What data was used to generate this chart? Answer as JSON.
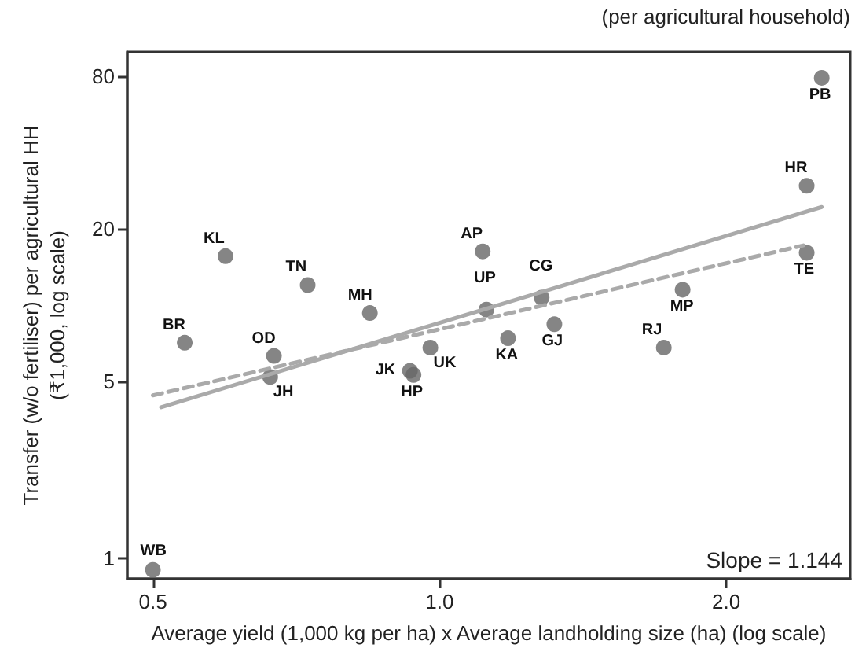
{
  "chart_data": {
    "type": "scatter",
    "xlabel": "Average yield (1,000 kg per ha) x Average landholding size (ha) (log scale)",
    "ylabel": "Transfer (w/o fertiliser) per agricultural HH\n(₹1,000, log scale)",
    "log": "xy",
    "grid": false,
    "xlim": [
      0.47,
      2.7
    ],
    "xticks": [
      0.5,
      {
        "value": 1,
        "label": "1.0"
      },
      {
        "value": 2,
        "label": "2.0"
      }
    ],
    "ylim": [
      0.83,
      100
    ],
    "yticks": [
      1,
      5,
      20,
      80
    ],
    "x": [
      0.5,
      0.54,
      0.596,
      0.727,
      0.67,
      0.664,
      0.845,
      0.978,
      0.931,
      0.939,
      1.11,
      1.12,
      1.18,
      1.28,
      1.32,
      1.72,
      1.8,
      2.43,
      2.43,
      2.52
    ],
    "series": [
      {
        "marker": "circle",
        "color": "#666666",
        "values": [
          0.9,
          7.1,
          15.6,
          12.0,
          6.3,
          5.2,
          9.3,
          6.8,
          5.5,
          5.3,
          16.3,
          9.6,
          7.4,
          10.7,
          8.4,
          6.8,
          11.5,
          16.1,
          29.6,
          79
        ]
      },
      {
        "type": "line",
        "color": "#aaaaaa",
        "line_style": "solid",
        "x": [
          0.51,
          2.52
        ],
        "values": [
          3.95,
          24.4
        ]
      },
      {
        "type": "line",
        "color": "#aaaaaa",
        "line_style": "dashed",
        "x": [
          0.5,
          2.41
        ],
        "values": [
          4.4,
          17.2
        ]
      }
    ],
    "annotations": [
      "(per agricultural household)",
      "Slope = 1.144",
      {
        "text": "WB",
        "x": 0.5,
        "y": 0.9
      },
      {
        "text": "BR",
        "x": 0.54,
        "y": 7.1
      },
      {
        "text": "KL",
        "x": 0.596,
        "y": 15.6
      },
      {
        "text": "TN",
        "x": 0.727,
        "y": 12.0
      },
      {
        "text": "OD",
        "x": 0.67,
        "y": 6.3
      },
      {
        "text": "JH",
        "x": 0.664,
        "y": 5.2
      },
      {
        "text": "MH",
        "x": 0.845,
        "y": 9.3
      },
      {
        "text": "UK",
        "x": 0.978,
        "y": 6.8
      },
      {
        "text": "JK",
        "x": 0.931,
        "y": 5.5
      },
      {
        "text": "HP",
        "x": 0.939,
        "y": 5.3
      },
      {
        "text": "AP",
        "x": 1.11,
        "y": 16.3
      },
      {
        "text": "UP",
        "x": 1.12,
        "y": 9.6
      },
      {
        "text": "KA",
        "x": 1.18,
        "y": 7.4
      },
      {
        "text": "CG",
        "x": 1.28,
        "y": 10.7
      },
      {
        "text": "GJ",
        "x": 1.32,
        "y": 8.4
      },
      {
        "text": "RJ",
        "x": 1.72,
        "y": 6.8
      },
      {
        "text": "MP",
        "x": 1.8,
        "y": 11.5
      },
      {
        "text": "TE",
        "x": 2.43,
        "y": 16.1
      },
      {
        "text": "HR",
        "x": 2.43,
        "y": 29.6
      },
      {
        "text": "PB",
        "x": 2.52,
        "y": 79
      }
    ]
  }
}
